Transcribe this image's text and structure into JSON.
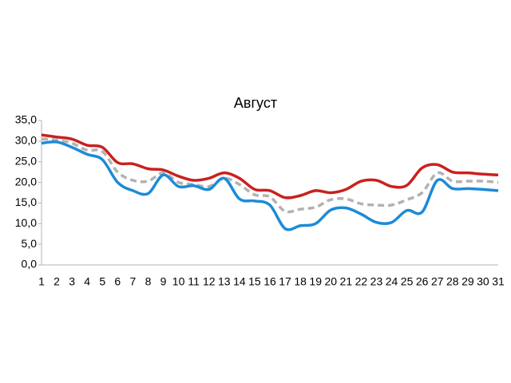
{
  "chart_data": {
    "type": "line",
    "title": "Август",
    "categories": [
      "1",
      "2",
      "3",
      "4",
      "5",
      "6",
      "7",
      "8",
      "9",
      "10",
      "11",
      "12",
      "13",
      "14",
      "15",
      "16",
      "17",
      "18",
      "19",
      "20",
      "21",
      "22",
      "23",
      "24",
      "25",
      "26",
      "27",
      "28",
      "29",
      "30",
      "31"
    ],
    "series": [
      {
        "color": "#c9211e",
        "dashed": false,
        "values": [
          31.5,
          31.0,
          30.5,
          29.0,
          28.5,
          24.8,
          24.5,
          23.3,
          23.0,
          21.5,
          20.5,
          21.0,
          22.3,
          21.0,
          18.3,
          18.0,
          16.3,
          16.8,
          18.0,
          17.5,
          18.3,
          20.3,
          20.5,
          19.0,
          19.3,
          23.5,
          24.3,
          22.5,
          22.3,
          22.0,
          21.8
        ]
      },
      {
        "color": "#b2b2b2",
        "dashed": true,
        "values": [
          30.5,
          30.3,
          29.5,
          27.8,
          27.5,
          22.5,
          20.5,
          20.3,
          22.3,
          20.0,
          19.5,
          19.0,
          21.0,
          19.5,
          17.0,
          16.5,
          13.0,
          13.5,
          14.0,
          15.8,
          16.0,
          14.8,
          14.5,
          14.5,
          15.8,
          17.5,
          22.3,
          20.3,
          20.3,
          20.3,
          20.0
        ]
      },
      {
        "color": "#1b8bd8",
        "dashed": false,
        "values": [
          29.5,
          29.8,
          28.5,
          26.8,
          25.5,
          20.0,
          18.0,
          17.3,
          21.8,
          19.0,
          19.2,
          18.3,
          21.0,
          16.0,
          15.5,
          14.5,
          8.8,
          9.5,
          10.0,
          13.3,
          13.8,
          12.3,
          10.3,
          10.3,
          13.2,
          12.8,
          20.5,
          18.5,
          18.5,
          18.3,
          18.0
        ]
      }
    ],
    "ylim": [
      0,
      35
    ],
    "yticks": [
      {
        "value": 0,
        "label": "0,0"
      },
      {
        "value": 5,
        "label": "5,0"
      },
      {
        "value": 10,
        "label": "10,0"
      },
      {
        "value": 15,
        "label": "15,0"
      },
      {
        "value": 20,
        "label": "20,0"
      },
      {
        "value": 25,
        "label": "25,0"
      },
      {
        "value": 30,
        "label": "30,0"
      },
      {
        "value": 35,
        "label": "35,0"
      }
    ],
    "grid": false
  }
}
